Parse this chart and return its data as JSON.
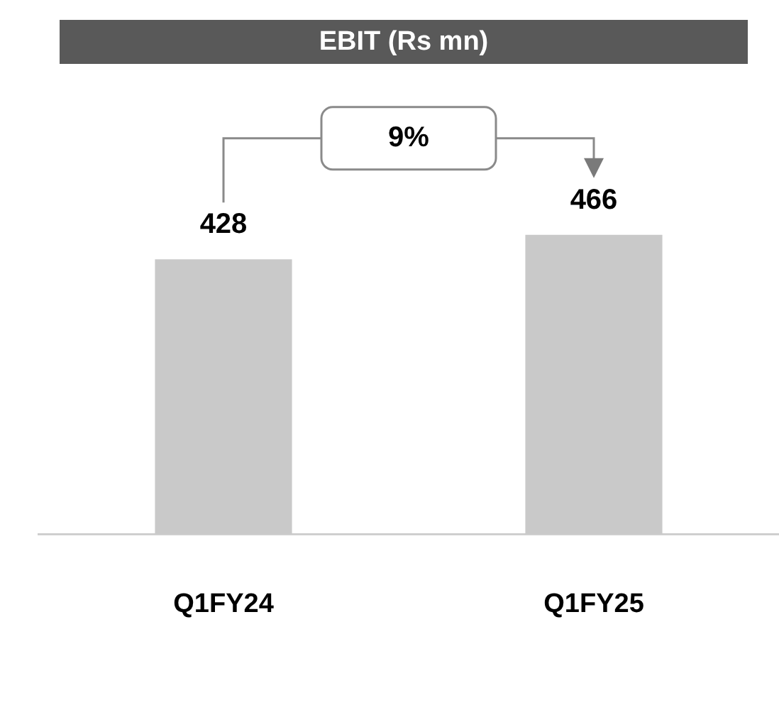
{
  "chart_data": {
    "type": "bar",
    "title": "EBIT (Rs mn)",
    "categories": [
      "Q1FY24",
      "Q1FY25"
    ],
    "values": [
      428,
      466
    ],
    "color": "#c9c9c9",
    "tick_labels": "x",
    "data_labels": true,
    "annotations": [
      "9%"
    ]
  }
}
